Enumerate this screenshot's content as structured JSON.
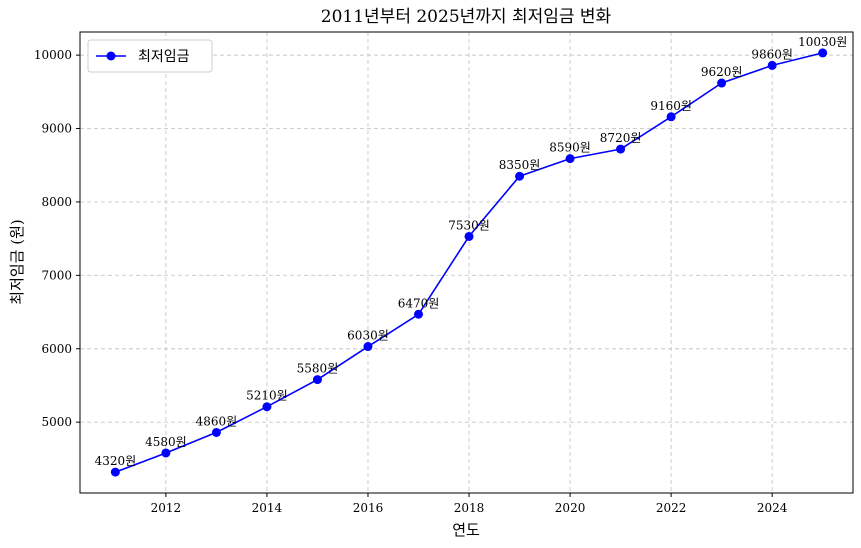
{
  "chart_data": {
    "type": "line",
    "title": "2011년부터 2025년까지 최저임금 변화",
    "xlabel": "연도",
    "ylabel": "최저임금 (원)",
    "x": [
      2011,
      2012,
      2013,
      2014,
      2015,
      2016,
      2017,
      2018,
      2019,
      2020,
      2021,
      2022,
      2023,
      2024,
      2025
    ],
    "series": [
      {
        "name": "최저임금",
        "color": "#0000ff",
        "marker": "circle",
        "values": [
          4320,
          4580,
          4860,
          5210,
          5580,
          6030,
          6470,
          7530,
          8350,
          8590,
          8720,
          9160,
          9620,
          9860,
          10030
        ],
        "labels": [
          "4320원",
          "4580원",
          "4860원",
          "5210원",
          "5580원",
          "6030원",
          "6470원",
          "7530원",
          "8350원",
          "8590원",
          "8720원",
          "9160원",
          "9620원",
          "9860원",
          "10030원"
        ]
      }
    ],
    "xticks": [
      2012,
      2014,
      2016,
      2018,
      2020,
      2022,
      2024
    ],
    "yticks": [
      5000,
      6000,
      7000,
      8000,
      9000,
      10000
    ],
    "xlim": [
      2010.3,
      2025.6
    ],
    "ylim": [
      4035,
      10315
    ],
    "grid": true,
    "grid_style": "dashed",
    "legend_position": "top-left"
  }
}
